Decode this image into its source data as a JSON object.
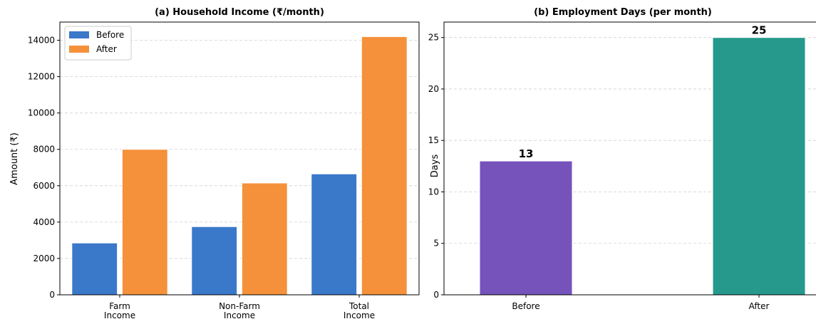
{
  "chart_data": [
    {
      "type": "bar",
      "title": "(a) Household Income (₹/month)",
      "xlabel": "",
      "ylabel": "Amount (₹)",
      "categories": [
        [
          "Farm",
          "Income"
        ],
        [
          "Non-Farm",
          "Income"
        ],
        [
          "Total",
          "Income"
        ]
      ],
      "series": [
        {
          "name": "Before",
          "color": "#3a78c9",
          "values": [
            2850,
            3750,
            6650
          ]
        },
        {
          "name": "After",
          "color": "#f5913a",
          "values": [
            8000,
            6150,
            14200
          ]
        }
      ],
      "ylim": [
        0,
        15000
      ],
      "yticks": [
        0,
        2000,
        4000,
        6000,
        8000,
        10000,
        12000,
        14000
      ],
      "grid": "y-dashed",
      "legend": "top-left"
    },
    {
      "type": "bar",
      "title": "(b) Employment Days (per month)",
      "xlabel": "",
      "ylabel": "Days",
      "categories": [
        "Before",
        "After"
      ],
      "values": [
        13,
        25
      ],
      "colors": [
        "#7652bb",
        "#26998c"
      ],
      "data_labels": [
        "13",
        "25"
      ],
      "ylim": [
        0,
        26.5
      ],
      "yticks": [
        0,
        5,
        10,
        15,
        20,
        25
      ],
      "grid": "y-dashed"
    }
  ]
}
